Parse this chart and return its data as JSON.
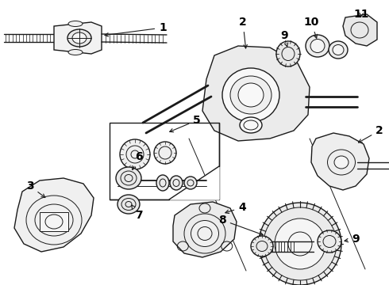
{
  "bg_color": "#ffffff",
  "line_color": "#1a1a1a",
  "label_color": "#000000",
  "font_size": 9,
  "fig_w": 4.9,
  "fig_h": 3.6,
  "dpi": 100
}
